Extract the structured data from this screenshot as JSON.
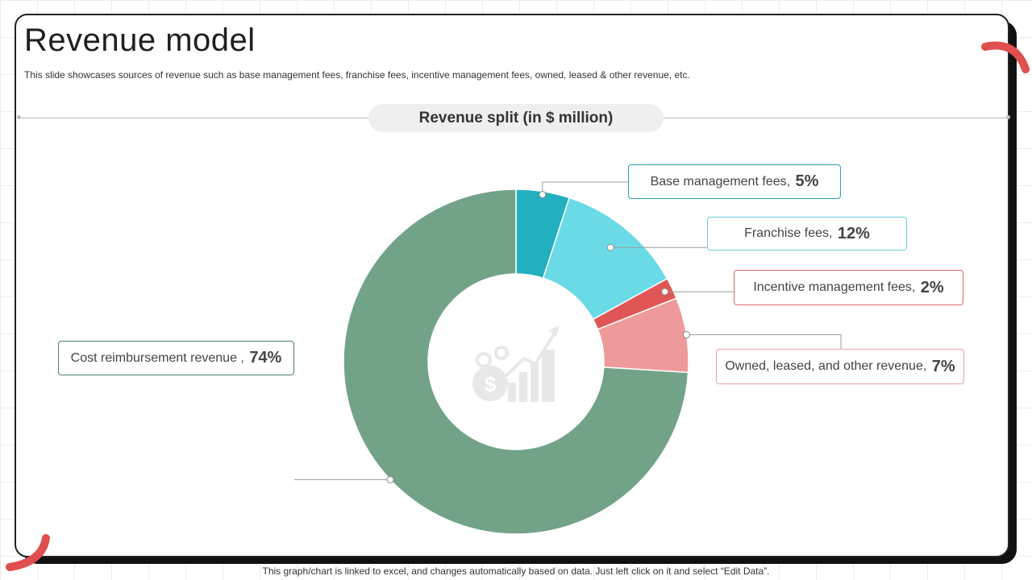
{
  "title": "Revenue model",
  "subtitle": "This slide showcases sources of revenue such as base management fees, franchise fees, incentive management fees, owned, leased & other revenue, etc.",
  "chart_title": "Revenue split (in $ million)",
  "footer": "This graph/chart is linked to excel,  and changes automatically based on data. Just left click on it and select “Edit Data”.",
  "colors": {
    "accent_red": "#e04f4f"
  },
  "chart_data": {
    "type": "pie",
    "style": "donut",
    "title": "Revenue split (in $ million)",
    "categories": [
      "Base management fees",
      "Franchise fees",
      "Incentive management fees",
      "Owned, leased, and other revenue",
      "Cost reimbursement revenue"
    ],
    "values": [
      5,
      12,
      2,
      7,
      74
    ],
    "value_labels": [
      "5%",
      "12%",
      "2%",
      "7%",
      "74%"
    ],
    "label_texts": [
      "Base management fees,",
      "Franchise fees,",
      "Incentive  management fees,",
      "Owned, leased, and other revenue,",
      "Cost reimbursement  revenue  ,"
    ],
    "colors": [
      "#22b0c0",
      "#6adbe6",
      "#e05656",
      "#ef9a9a",
      "#72a388"
    ],
    "border_colors": [
      "#2a9fad",
      "#6ccfdc",
      "#d46a6a",
      "#e8a2a2",
      "#4f7f6a"
    ]
  }
}
